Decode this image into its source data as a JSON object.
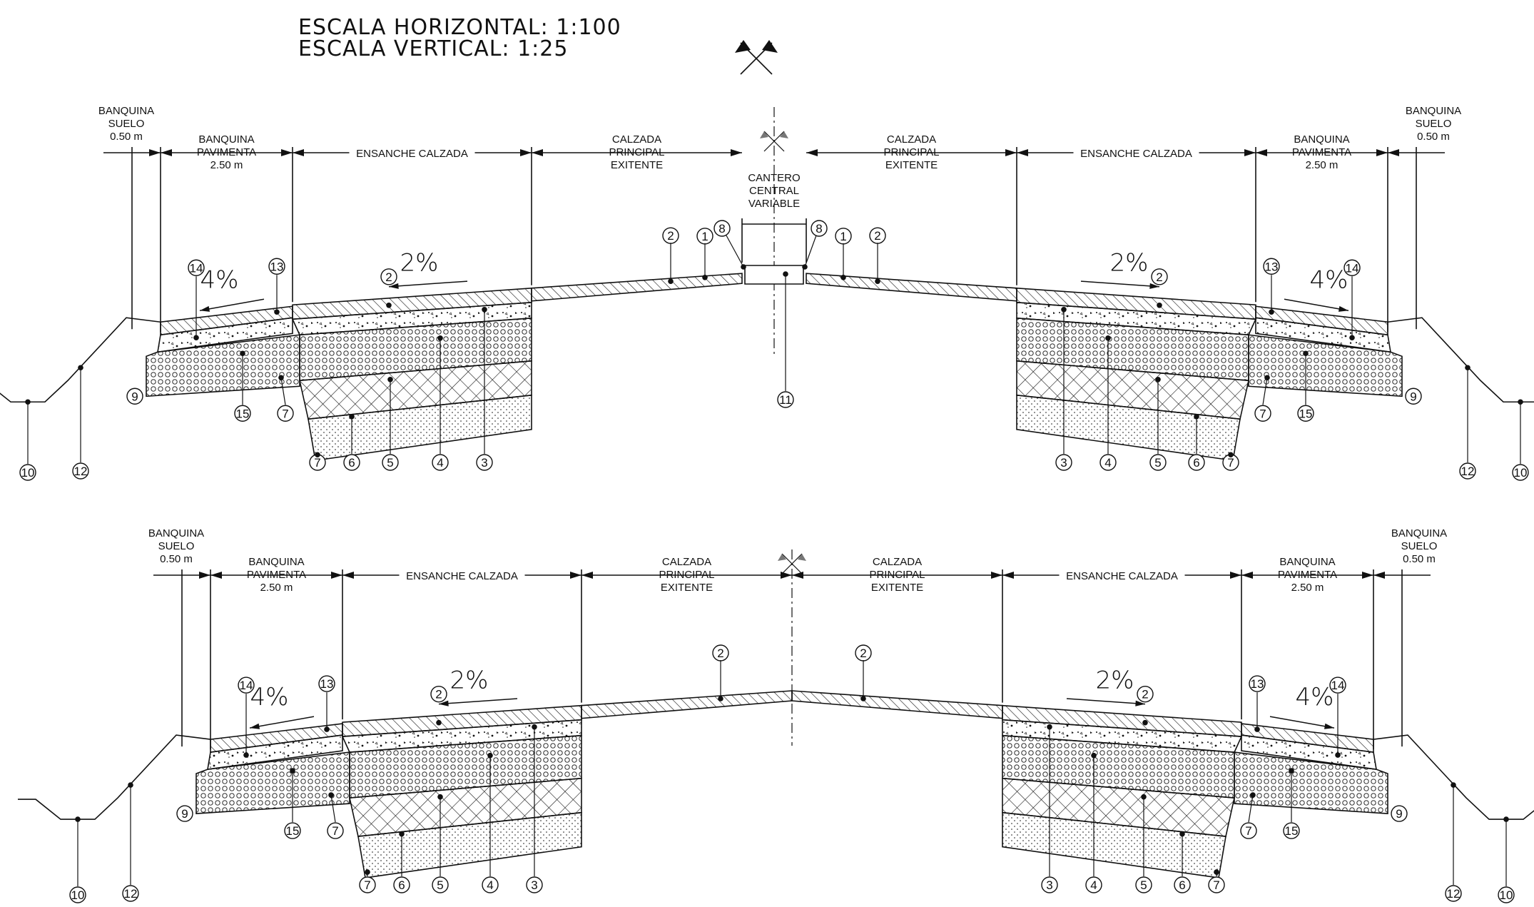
{
  "scale": {
    "horizontal": "ESCALA HORIZONTAL: 1:100",
    "vertical": "ESCALA VERTICAL: 1:25"
  },
  "labels": {
    "banquina_suelo": [
      "BANQUINA",
      "SUELO",
      "0.50 m"
    ],
    "banquina_pavimenta": [
      "BANQUINA",
      "PAVIMENTA",
      "2.50 m"
    ],
    "ensanche_calzada": "ENSANCHE CALZADA",
    "calzada_principal": [
      "CALZADA",
      "PRINCIPAL",
      "EXITENTE"
    ],
    "cantero_central": [
      "CANTERO",
      "CENTRAL",
      "VARIABLE"
    ]
  },
  "slopes": {
    "calzada": "2%",
    "banquina": "4%"
  },
  "callouts": [
    "1",
    "2",
    "3",
    "4",
    "5",
    "6",
    "7",
    "8",
    "9",
    "10",
    "11",
    "12",
    "13",
    "14",
    "15"
  ]
}
